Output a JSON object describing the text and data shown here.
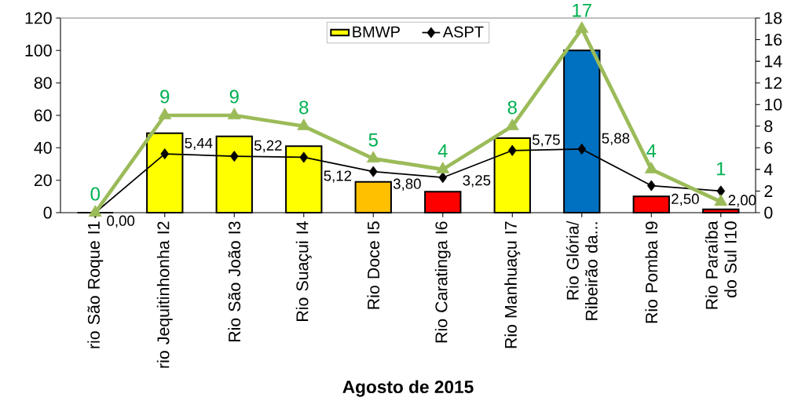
{
  "chart_data": {
    "type": "bar",
    "xlabel": "Agosto de 2015",
    "categories": [
      "rio São Roque I1",
      "rio Jequitinhonha I2",
      "Rio São João  I3",
      "Rio Suaçui I4",
      "Rio Doce I5",
      "Rio Caratinga I6",
      "Rio Manhuaçu I7",
      "Rio Glória/ Ribeirão da...",
      "Rio Pomba I9",
      "Rio Paraíba do Sul I10"
    ],
    "series": [
      {
        "name": "BMWP",
        "colors": [
          "#ffff00",
          "#ffff00",
          "#ffff00",
          "#ffff00",
          "#ffc000",
          "#ff0000",
          "#ffff00",
          "#0070c0",
          "#ff0000",
          "#ff0000"
        ],
        "values": [
          0,
          49,
          47,
          41,
          19,
          13,
          46,
          100,
          10,
          2
        ]
      },
      {
        "name": "ASPT",
        "type": "line",
        "axis": "y2",
        "color": "#000000",
        "marker": "diamond",
        "values": [
          0.0,
          5.44,
          5.22,
          5.12,
          3.8,
          3.25,
          5.75,
          5.88,
          2.5,
          2.0
        ],
        "value_labels": [
          "0,00",
          "5,44",
          "5,22",
          "5,12",
          "3,80",
          "3,25",
          "5,75",
          "5,88",
          "2,50",
          "2,00"
        ]
      },
      {
        "type": "line",
        "axis": "y2",
        "color": "#9bbb59",
        "marker": "triangle",
        "values": [
          0,
          9,
          9,
          8,
          5,
          4,
          8,
          17,
          4,
          1
        ],
        "value_labels": [
          "0",
          "9",
          "9",
          "8",
          "5",
          "4",
          "8",
          "17",
          "4",
          "1"
        ]
      }
    ],
    "ylim": [
      0,
      120
    ],
    "yticks": [
      0,
      20,
      40,
      60,
      80,
      100,
      120
    ],
    "y2lim": [
      0,
      18
    ],
    "y2ticks": [
      0,
      2,
      4,
      6,
      8,
      10,
      12,
      14,
      16,
      18
    ],
    "legend": "top",
    "grid": false
  }
}
